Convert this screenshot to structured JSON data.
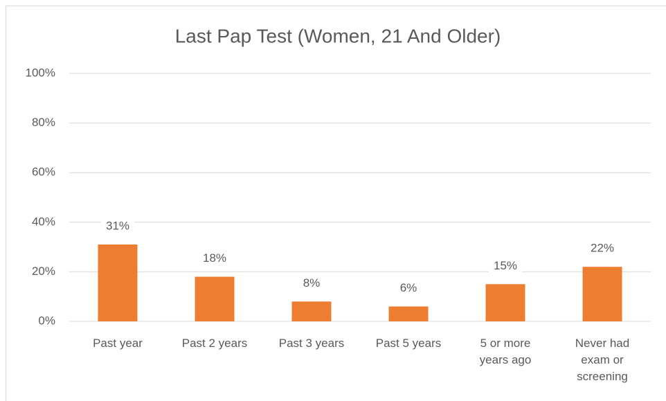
{
  "chart_data": {
    "type": "bar",
    "title": "Last Pap Test (Women, 21 And Older)",
    "categories": [
      "Past year",
      "Past 2 years",
      "Past 3 years",
      "Past 5 years",
      "5 or more years ago",
      "Never had exam or screening"
    ],
    "values": [
      31,
      18,
      8,
      6,
      15,
      22
    ],
    "value_labels": [
      "31%",
      "18%",
      "8%",
      "6%",
      "15%",
      "22%"
    ],
    "color": "#ed7d31",
    "ylim": [
      0,
      100
    ],
    "yticks": [
      {
        "value": 0,
        "label": "0%"
      },
      {
        "value": 20,
        "label": "20%"
      },
      {
        "value": 40,
        "label": "40%"
      },
      {
        "value": 60,
        "label": "60%"
      },
      {
        "value": 80,
        "label": "80%"
      },
      {
        "value": 100,
        "label": "100%"
      }
    ],
    "grid": true
  }
}
